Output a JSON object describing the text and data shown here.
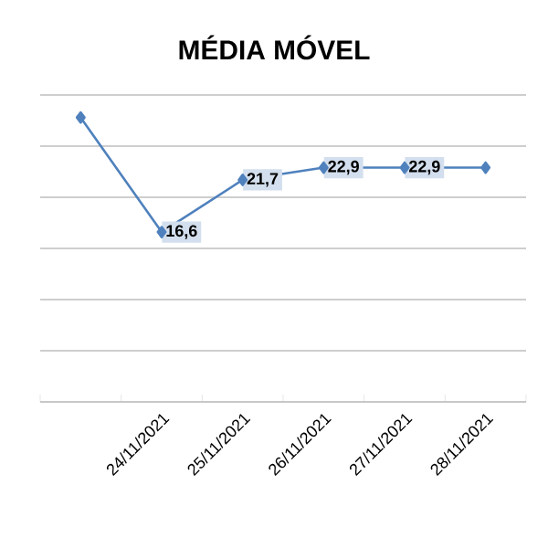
{
  "chart_data": {
    "type": "line",
    "title": "MÉDIA MÓVEL",
    "categories": [
      null,
      "24/11/2021",
      "25/11/2021",
      "26/11/2021",
      "27/11/2021",
      "28/11/2021"
    ],
    "series": [
      {
        "color": "#4f81bd",
        "values": [
          27.8,
          16.6,
          21.7,
          22.9,
          22.9,
          22.9
        ],
        "value_labels": [
          null,
          "16,6",
          "21,7",
          "22,9",
          "22,9",
          null
        ]
      }
    ],
    "ylim": [
      0,
      30
    ],
    "yticks": [
      {
        "value": 0,
        "label": null
      },
      {
        "value": 5,
        "label": null
      },
      {
        "value": 10,
        "label": null
      },
      {
        "value": 15,
        "label": null
      },
      {
        "value": 20,
        "label": null
      },
      {
        "value": 25,
        "label": null
      },
      {
        "value": 30,
        "label": null
      }
    ],
    "tick_labels": "x",
    "grid": "y",
    "marker": "diamond",
    "line_style": "solid"
  }
}
